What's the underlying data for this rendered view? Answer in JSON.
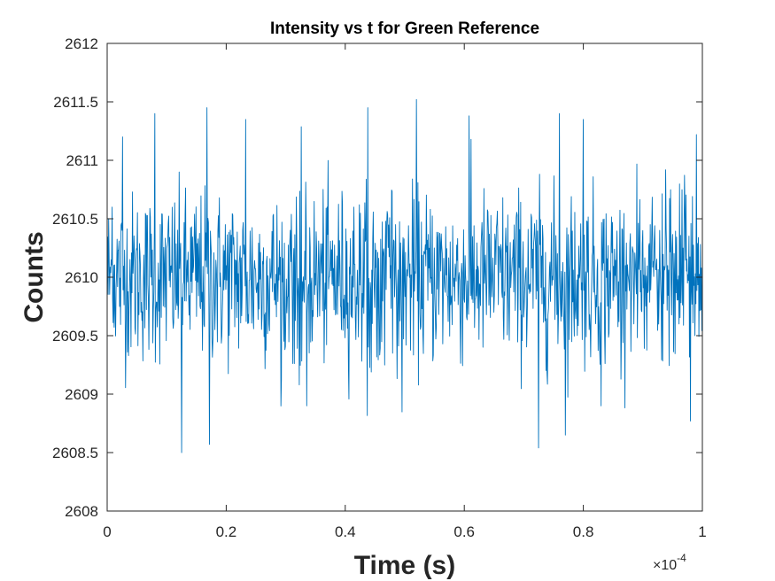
{
  "chart_data": {
    "type": "line",
    "title": "Intensity vs t for Green Reference",
    "xlabel": "Time (s)",
    "ylabel": "Counts",
    "x_exponent_label": "×10",
    "x_exponent_power": "-4",
    "xlim": [
      0,
      1
    ],
    "ylim": [
      2608,
      2612
    ],
    "x_ticks": [
      0,
      0.2,
      0.4,
      0.6,
      0.8,
      1
    ],
    "x_tick_labels": [
      "0",
      "0.2",
      "0.4",
      "0.6",
      "0.8",
      "1"
    ],
    "y_ticks": [
      2608,
      2608.5,
      2609,
      2609.5,
      2610,
      2610.5,
      2611,
      2611.5,
      2612
    ],
    "y_tick_labels": [
      "2608",
      "2608.5",
      "2609",
      "2609.5",
      "2610",
      "2610.5",
      "2611",
      "2611.5",
      "2612"
    ],
    "grid": false,
    "line_color": "#0072BD",
    "series": [
      {
        "values_description_count": 1200,
        "mean": 2610.0,
        "x_start": 0,
        "x_end": 1,
        "peaks": [
          {
            "x": 0.008,
            "y": 2610.6
          },
          {
            "x": 0.026,
            "y": 2611.2
          },
          {
            "x": 0.08,
            "y": 2611.4
          },
          {
            "x": 0.125,
            "y": 2608.5
          },
          {
            "x": 0.168,
            "y": 2611.45
          },
          {
            "x": 0.172,
            "y": 2608.57
          },
          {
            "x": 0.233,
            "y": 2611.35
          },
          {
            "x": 0.335,
            "y": 2608.9
          },
          {
            "x": 0.438,
            "y": 2611.45
          },
          {
            "x": 0.52,
            "y": 2611.52
          },
          {
            "x": 0.608,
            "y": 2611.38
          },
          {
            "x": 0.725,
            "y": 2608.54
          },
          {
            "x": 0.76,
            "y": 2611.4
          },
          {
            "x": 0.77,
            "y": 2608.65
          },
          {
            "x": 0.8,
            "y": 2611.35
          },
          {
            "x": 0.83,
            "y": 2608.9
          },
          {
            "x": 0.98,
            "y": 2608.77
          },
          {
            "x": 0.99,
            "y": 2611.22
          }
        ]
      }
    ]
  }
}
